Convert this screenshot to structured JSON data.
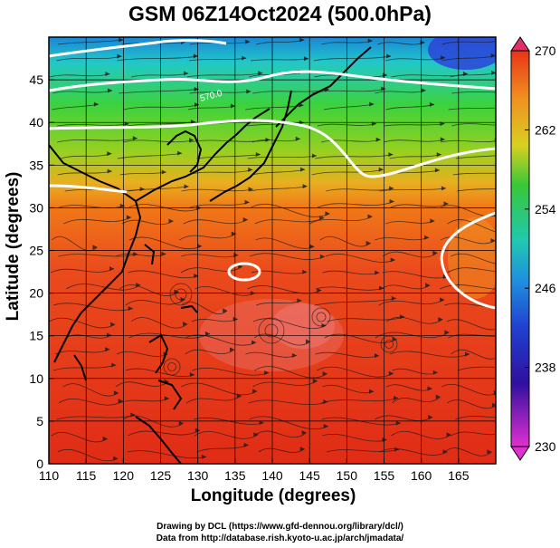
{
  "title": "GSM 06Z14Oct2024 (500.0hPa)",
  "x_axis": {
    "label": "Longitude (degrees)",
    "ticks": [
      "110",
      "115",
      "120",
      "125",
      "130",
      "135",
      "140",
      "145",
      "150",
      "155",
      "160",
      "165"
    ]
  },
  "y_axis": {
    "label": "Latitude  (degrees)",
    "ticks": [
      "0",
      "5",
      "10",
      "15",
      "20",
      "25",
      "30",
      "35",
      "40",
      "45"
    ]
  },
  "contour_label": "570.0",
  "colorbar": {
    "ticks": [
      "270",
      "262",
      "254",
      "246",
      "238",
      "230"
    ]
  },
  "credits": {
    "line1": "Drawing by DCL (https://www.gfd-dennou.org/library/dcl/)",
    "line2": "Data from http://database.rish.kyoto-u.ac.jp/arch/jmadata/"
  },
  "colors": {
    "cold": "#1f1fd0",
    "cool": "#22c8e8",
    "mid": "#3cd23c",
    "warm": "#f4a020",
    "hot": "#e83020",
    "extreme": "#e87090"
  }
}
